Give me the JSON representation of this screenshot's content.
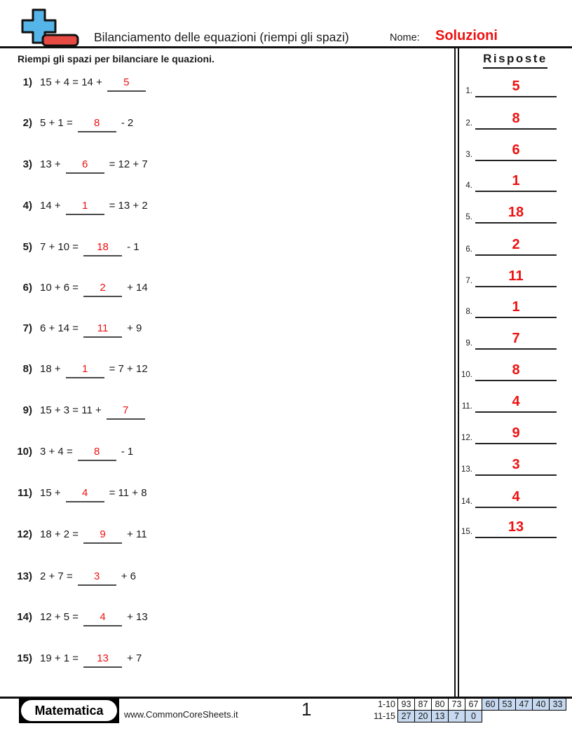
{
  "header": {
    "title": "Bilanciamento delle equazioni (riempi gli spazi)",
    "name_label": "Nome:",
    "name_value": "Soluzioni"
  },
  "instructions": "Riempi gli spazi per bilanciare le quazioni.",
  "answers_panel": {
    "title": "Risposte",
    "items": [
      {
        "num": "1.",
        "value": "5"
      },
      {
        "num": "2.",
        "value": "8"
      },
      {
        "num": "3.",
        "value": "6"
      },
      {
        "num": "4.",
        "value": "1"
      },
      {
        "num": "5.",
        "value": "18"
      },
      {
        "num": "6.",
        "value": "2"
      },
      {
        "num": "7.",
        "value": "11"
      },
      {
        "num": "8.",
        "value": "1"
      },
      {
        "num": "9.",
        "value": "7"
      },
      {
        "num": "10.",
        "value": "8"
      },
      {
        "num": "11.",
        "value": "4"
      },
      {
        "num": "12.",
        "value": "9"
      },
      {
        "num": "13.",
        "value": "3"
      },
      {
        "num": "14.",
        "value": "4"
      },
      {
        "num": "15.",
        "value": "13"
      }
    ]
  },
  "problems": [
    {
      "num": "1)",
      "pre": "15 + 4 = 14 +",
      "answer": "5",
      "post": ""
    },
    {
      "num": "2)",
      "pre": "5 + 1 =",
      "answer": "8",
      "post": "- 2"
    },
    {
      "num": "3)",
      "pre": "13 +",
      "answer": "6",
      "post": "= 12 + 7"
    },
    {
      "num": "4)",
      "pre": "14 +",
      "answer": "1",
      "post": "= 13 + 2"
    },
    {
      "num": "5)",
      "pre": "7 + 10 =",
      "answer": "18",
      "post": "- 1"
    },
    {
      "num": "6)",
      "pre": "10 + 6 =",
      "answer": "2",
      "post": "+ 14"
    },
    {
      "num": "7)",
      "pre": "6 + 14 =",
      "answer": "11",
      "post": "+ 9"
    },
    {
      "num": "8)",
      "pre": "18 +",
      "answer": "1",
      "post": "= 7 + 12"
    },
    {
      "num": "9)",
      "pre": "15 + 3 = 11 +",
      "answer": "7",
      "post": ""
    },
    {
      "num": "10)",
      "pre": "3 + 4 =",
      "answer": "8",
      "post": "- 1"
    },
    {
      "num": "11)",
      "pre": "15 +",
      "answer": "4",
      "post": "= 11 + 8"
    },
    {
      "num": "12)",
      "pre": "18 + 2 =",
      "answer": "9",
      "post": "+ 11"
    },
    {
      "num": "13)",
      "pre": "2 + 7 =",
      "answer": "3",
      "post": "+ 6"
    },
    {
      "num": "14)",
      "pre": "12 + 5 =",
      "answer": "4",
      "post": "+ 13"
    },
    {
      "num": "15)",
      "pre": "19 + 1 =",
      "answer": "13",
      "post": "+ 7"
    }
  ],
  "footer": {
    "brand": "Matematica",
    "website": "www.CommonCoreSheets.it",
    "page_number": "1",
    "score_table": {
      "rows": [
        {
          "label": "1-10",
          "cells": [
            {
              "v": "93",
              "hl": false
            },
            {
              "v": "87",
              "hl": false
            },
            {
              "v": "80",
              "hl": false
            },
            {
              "v": "73",
              "hl": false
            },
            {
              "v": "67",
              "hl": false
            },
            {
              "v": "60",
              "hl": true
            },
            {
              "v": "53",
              "hl": true
            },
            {
              "v": "47",
              "hl": true
            },
            {
              "v": "40",
              "hl": true
            },
            {
              "v": "33",
              "hl": true
            }
          ]
        },
        {
          "label": "11-15",
          "cells": [
            {
              "v": "27",
              "hl": true
            },
            {
              "v": "20",
              "hl": true
            },
            {
              "v": "13",
              "hl": true
            },
            {
              "v": "7",
              "hl": true
            },
            {
              "v": "0",
              "hl": true
            }
          ]
        }
      ]
    }
  },
  "icons": {
    "logo": "plus-minus-logo"
  },
  "colors": {
    "accent_red": "#ee1111",
    "logo_blue": "#56b5e8",
    "logo_red": "#e64a42",
    "cell_blue": "#c6d9f0"
  }
}
